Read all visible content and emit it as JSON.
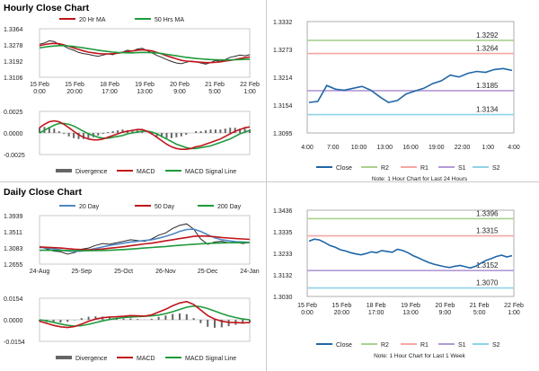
{
  "colors": {
    "ma_short": "#c0151b",
    "ma_long": "#1e9a3c",
    "price": "#2a2a2a",
    "macd": "#c0151b",
    "signal": "#1e9a3c",
    "divergence": "#666666",
    "day20": "#4f86c6",
    "close": "#1f66a6",
    "r2": "#a9d18e",
    "r1": "#f4a7a3",
    "s1": "#b29ad6",
    "s2": "#8fd3e8"
  },
  "sections": {
    "hourly_title": "Hourly Close Chart",
    "daily_title": "Daily Close Chart"
  },
  "chart_data": [
    {
      "id": "hourly-price",
      "type": "line",
      "title": "Hourly Close Chart",
      "legend": [
        "20 Hr MA",
        "50 Hrs MA"
      ],
      "ylim": [
        1.3106,
        1.3364
      ],
      "yticks": [
        "1.3364",
        "1.3278",
        "1.3192",
        "1.3106"
      ],
      "xticks": [
        "15 Feb\n0:00",
        "15 Feb\n20:00",
        "18 Feb\n17:00",
        "19 Feb\n13:00",
        "20 Feb\n9:00",
        "21 Feb\n5:00",
        "22 Feb\n1:00"
      ],
      "series": [
        {
          "name": "Close",
          "values": [
            1.3282,
            1.3288,
            1.33,
            1.3296,
            1.328,
            1.3272,
            1.3258,
            1.325,
            1.3238,
            1.3232,
            1.3228,
            1.3222,
            1.3218,
            1.3224,
            1.323,
            1.3226,
            1.3236,
            1.324,
            1.325,
            1.3244,
            1.3256,
            1.326,
            1.3248,
            1.3236,
            1.3222,
            1.3212,
            1.32,
            1.319,
            1.3182,
            1.3178,
            1.3186,
            1.3192,
            1.3188,
            1.3182,
            1.3176,
            1.3184,
            1.3196,
            1.319,
            1.32,
            1.3212,
            1.3218,
            1.3224,
            1.322,
            1.3226
          ]
        },
        {
          "name": "20 Hr MA",
          "values": [
            1.3274,
            1.328,
            1.3284,
            1.3286,
            1.3284,
            1.3278,
            1.327,
            1.3262,
            1.3254,
            1.3246,
            1.324,
            1.3236,
            1.3232,
            1.323,
            1.323,
            1.3231,
            1.3234,
            1.3238,
            1.3242,
            1.3246,
            1.325,
            1.3252,
            1.325,
            1.3246,
            1.3238,
            1.323,
            1.322,
            1.3212,
            1.3204,
            1.3196,
            1.3192,
            1.319,
            1.3188,
            1.3186,
            1.3184,
            1.3184,
            1.3186,
            1.3188,
            1.3192,
            1.3196,
            1.32,
            1.3206,
            1.321,
            1.3214
          ]
        },
        {
          "name": "50 Hrs MA",
          "values": [
            1.3262,
            1.3266,
            1.327,
            1.3272,
            1.3274,
            1.3274,
            1.3272,
            1.327,
            1.3266,
            1.3262,
            1.3258,
            1.3254,
            1.325,
            1.3246,
            1.3243,
            1.324,
            1.3238,
            1.3237,
            1.3236,
            1.3236,
            1.3237,
            1.3238,
            1.3238,
            1.3237,
            1.3235,
            1.3232,
            1.3228,
            1.3224,
            1.322,
            1.3216,
            1.3212,
            1.3209,
            1.3206,
            1.3204,
            1.3202,
            1.32,
            1.3199,
            1.3198,
            1.3198,
            1.3198,
            1.3199,
            1.32,
            1.3201,
            1.3202
          ]
        }
      ]
    },
    {
      "id": "hourly-macd",
      "type": "line",
      "title": "",
      "legend": [
        "Divergence",
        "MACD",
        "MACD Signal Line"
      ],
      "ylim": [
        -0.0025,
        0.0025
      ],
      "yticks": [
        "0.0025",
        "0.0000",
        "-0.0025"
      ],
      "series": [
        {
          "name": "MACD",
          "values": [
            0.0006,
            0.001,
            0.0013,
            0.0014,
            0.0013,
            0.001,
            0.0006,
            0.0002,
            -0.0002,
            -0.0005,
            -0.0007,
            -0.0008,
            -0.0008,
            -0.0007,
            -0.0005,
            -0.0003,
            -0.0001,
            0.0001,
            0.0002,
            0.0003,
            0.0004,
            0.0004,
            0.0002,
            -0.0001,
            -0.0005,
            -0.0009,
            -0.0013,
            -0.0016,
            -0.0018,
            -0.0019,
            -0.0019,
            -0.0018,
            -0.0016,
            -0.0015,
            -0.0013,
            -0.0011,
            -0.0009,
            -0.0007,
            -0.0004,
            -0.0001,
            0.0002,
            0.0004,
            0.0006,
            0.0007
          ]
        },
        {
          "name": "MACD Signal Line",
          "values": [
            0.0,
            0.0003,
            0.0006,
            0.0009,
            0.0011,
            0.0011,
            0.001,
            0.0008,
            0.0005,
            0.0002,
            -0.0001,
            -0.0003,
            -0.0005,
            -0.0006,
            -0.0006,
            -0.0005,
            -0.0004,
            -0.0003,
            -0.0001,
            0.0,
            0.0001,
            0.0002,
            0.0002,
            0.0001,
            -0.0001,
            -0.0004,
            -0.0007,
            -0.001,
            -0.0013,
            -0.0015,
            -0.0017,
            -0.0018,
            -0.0018,
            -0.0017,
            -0.0016,
            -0.0015,
            -0.0013,
            -0.0011,
            -0.0009,
            -0.0007,
            -0.0004,
            -0.0001,
            0.0001,
            0.0003
          ]
        }
      ]
    },
    {
      "id": "hourly-pivot",
      "type": "line",
      "title": "",
      "note": "Note: 1 Hour Chart for Last 24 Hours",
      "ylim": [
        1.3095,
        1.3332
      ],
      "yticks": [
        "1.3332",
        "1.3273",
        "1.3214",
        "1.3154",
        "1.3095"
      ],
      "xticks": [
        "4:00",
        "7:00",
        "10:00",
        "13:00",
        "16:00",
        "19:00",
        "22:00",
        "1:00",
        "4:00"
      ],
      "levels": [
        {
          "name": "R2",
          "value": 1.3292,
          "label": "1.3292"
        },
        {
          "name": "R1",
          "value": 1.3264,
          "label": "1.3264"
        },
        {
          "name": "S1",
          "value": 1.3185,
          "label": "1.3185"
        },
        {
          "name": "S2",
          "value": 1.3134,
          "label": "1.3134"
        }
      ],
      "legend": [
        "Close",
        "R2",
        "R1",
        "S1",
        "S2"
      ],
      "series": [
        {
          "name": "Close",
          "values": [
            1.316,
            1.3162,
            1.3196,
            1.3188,
            1.3186,
            1.319,
            1.3194,
            1.3186,
            1.3172,
            1.316,
            1.3164,
            1.3178,
            1.3184,
            1.319,
            1.32,
            1.3206,
            1.3218,
            1.3214,
            1.3222,
            1.3226,
            1.3224,
            1.323,
            1.3232,
            1.3228
          ]
        }
      ]
    },
    {
      "id": "daily-price",
      "type": "line",
      "title": "Daily Close Chart",
      "legend": [
        "20 Day",
        "50 Day",
        "200 Day"
      ],
      "ylim": [
        1.2655,
        1.3939
      ],
      "yticks": [
        "1.3939",
        "1.3511",
        "1.3083",
        "1.2655"
      ],
      "xticks": [
        "24-Aug",
        "25-Sep",
        "25-Oct",
        "26-Nov",
        "25-Dec",
        "24-Jan"
      ],
      "series": [
        {
          "name": "Close",
          "values": [
            1.312,
            1.306,
            1.3,
            1.298,
            1.292,
            1.296,
            1.305,
            1.308,
            1.315,
            1.32,
            1.318,
            1.322,
            1.326,
            1.33,
            1.328,
            1.326,
            1.332,
            1.342,
            1.348,
            1.36,
            1.368,
            1.372,
            1.358,
            1.332,
            1.318,
            1.324,
            1.326,
            1.322,
            1.324,
            1.32,
            1.323
          ]
        },
        {
          "name": "20 Day",
          "values": [
            1.31,
            1.308,
            1.306,
            1.303,
            1.3,
            1.299,
            1.3,
            1.303,
            1.307,
            1.311,
            1.315,
            1.318,
            1.321,
            1.324,
            1.326,
            1.328,
            1.33,
            1.334,
            1.339,
            1.345,
            1.352,
            1.357,
            1.358,
            1.352,
            1.343,
            1.335,
            1.33,
            1.327,
            1.325,
            1.324,
            1.323
          ]
        },
        {
          "name": "50 Day",
          "values": [
            1.311,
            1.31,
            1.309,
            1.308,
            1.3065,
            1.305,
            1.304,
            1.3035,
            1.304,
            1.3055,
            1.3075,
            1.3095,
            1.3115,
            1.314,
            1.3165,
            1.319,
            1.321,
            1.324,
            1.327,
            1.33,
            1.333,
            1.336,
            1.339,
            1.34,
            1.3395,
            1.338,
            1.336,
            1.3345,
            1.333,
            1.332,
            1.331
          ]
        },
        {
          "name": "200 Day",
          "values": [
            1.302,
            1.302,
            1.3018,
            1.3016,
            1.3014,
            1.3012,
            1.301,
            1.301,
            1.3012,
            1.3016,
            1.3022,
            1.303,
            1.304,
            1.3052,
            1.3066,
            1.308,
            1.3094,
            1.3108,
            1.3122,
            1.3138,
            1.3152,
            1.3166,
            1.318,
            1.3192,
            1.3202,
            1.321,
            1.3216,
            1.322,
            1.3222,
            1.3224,
            1.3226
          ]
        }
      ]
    },
    {
      "id": "daily-macd",
      "type": "line",
      "title": "",
      "legend": [
        "Divergence",
        "MACD",
        "MACD Signal Line"
      ],
      "ylim": [
        -0.0154,
        0.0154
      ],
      "yticks": [
        "0.0154",
        "0.0000",
        "-0.0154"
      ],
      "series": [
        {
          "name": "MACD",
          "values": [
            -0.001,
            -0.0025,
            -0.004,
            -0.005,
            -0.0055,
            -0.0048,
            -0.003,
            -0.001,
            0.0005,
            0.0015,
            0.002,
            0.0022,
            0.0025,
            0.003,
            0.0028,
            0.0026,
            0.0035,
            0.0055,
            0.0075,
            0.01,
            0.012,
            0.013,
            0.011,
            0.007,
            0.003,
            0.0005,
            -0.001,
            -0.0018,
            -0.002,
            -0.0022,
            -0.002
          ]
        },
        {
          "name": "MACD Signal Line",
          "values": [
            0.0,
            -0.0008,
            -0.0018,
            -0.003,
            -0.004,
            -0.0045,
            -0.0042,
            -0.0032,
            -0.002,
            -0.0008,
            0.0002,
            0.001,
            0.0016,
            0.002,
            0.0023,
            0.0025,
            0.0028,
            0.0034,
            0.0044,
            0.0058,
            0.0074,
            0.009,
            0.0098,
            0.0094,
            0.008,
            0.0062,
            0.0044,
            0.0028,
            0.0016,
            0.0006,
            0.0
          ]
        }
      ]
    },
    {
      "id": "daily-pivot",
      "type": "line",
      "title": "",
      "note": "Note: 1 Hour Chart for Last 1 Week",
      "ylim": [
        1.303,
        1.3436
      ],
      "yticks": [
        "1.3436",
        "1.3335",
        "1.3233",
        "1.3132",
        "1.3030"
      ],
      "xticks": [
        "15 Feb\n0:00",
        "15 Feb\n20:00",
        "18 Feb\n17:00",
        "19 Feb\n13:00",
        "20 Feb\n9:00",
        "21 Feb\n5:00",
        "22 Feb\n1:00"
      ],
      "levels": [
        {
          "name": "R2",
          "value": 1.3396,
          "label": "1.3396"
        },
        {
          "name": "R1",
          "value": 1.3315,
          "label": "1.3315"
        },
        {
          "name": "S1",
          "value": 1.3152,
          "label": "1.3152"
        },
        {
          "name": "S2",
          "value": 1.307,
          "label": "1.3070"
        }
      ],
      "legend": [
        "Close",
        "R2",
        "R1",
        "S1",
        "S2"
      ],
      "series": [
        {
          "name": "Close",
          "values": [
            1.329,
            1.33,
            1.3296,
            1.3284,
            1.327,
            1.3262,
            1.325,
            1.3244,
            1.3236,
            1.323,
            1.3226,
            1.3232,
            1.324,
            1.3236,
            1.3246,
            1.3242,
            1.3238,
            1.3252,
            1.3246,
            1.3236,
            1.3222,
            1.3212,
            1.32,
            1.319,
            1.3182,
            1.3176,
            1.317,
            1.3166,
            1.3172,
            1.3176,
            1.317,
            1.3164,
            1.3172,
            1.3186,
            1.32,
            1.3208,
            1.3218,
            1.3224,
            1.3216,
            1.3222
          ]
        }
      ]
    }
  ]
}
